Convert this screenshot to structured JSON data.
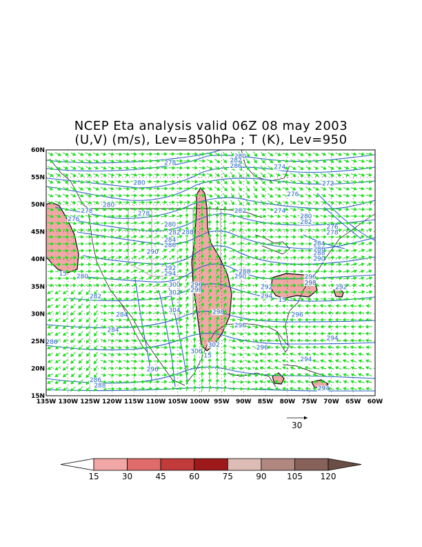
{
  "title": {
    "line1": "NCEP Eta analysis valid 06Z 08 may 2003",
    "line2": "(U,V) (m/s), Lev=850hPa ; T (K), Lev=950"
  },
  "chart_data": {
    "type": "map",
    "lat_range": [
      15,
      60
    ],
    "lon_range": [
      -135,
      -60
    ],
    "lat_ticks": [
      "15N",
      "20N",
      "25N",
      "30N",
      "35N",
      "40N",
      "45N",
      "50N",
      "55N",
      "60N"
    ],
    "lon_ticks": [
      "135W",
      "130W",
      "125W",
      "120W",
      "115W",
      "110W",
      "105W",
      "100W",
      "95W",
      "90W",
      "85W",
      "80W",
      "75W",
      "70W",
      "65W",
      "60W"
    ],
    "grid": true,
    "colors": {
      "contour": "#2a62c8",
      "vector": "#22dd22",
      "coast": "#000000",
      "shade_15_30": "#f2a7a7"
    },
    "vector_reference": {
      "label": "30",
      "units": "m/s"
    },
    "temperature_contour_labels": [
      {
        "text": "278",
        "lon": -107,
        "lat": 57.3
      },
      {
        "text": "280",
        "lon": -91,
        "lat": 58.5
      },
      {
        "text": "282",
        "lon": -92,
        "lat": 57.7
      },
      {
        "text": "286",
        "lon": -92,
        "lat": 56.7
      },
      {
        "text": "274",
        "lon": -82,
        "lat": 56.5
      },
      {
        "text": "272",
        "lon": -71,
        "lat": 53.5
      },
      {
        "text": "276",
        "lon": -79,
        "lat": 51.5
      },
      {
        "text": "280",
        "lon": -114,
        "lat": 53.6
      },
      {
        "text": "280",
        "lon": -121,
        "lat": 49.6
      },
      {
        "text": "278",
        "lon": -126,
        "lat": 48.5
      },
      {
        "text": "276",
        "lon": -129,
        "lat": 47.0
      },
      {
        "text": "278",
        "lon": -113,
        "lat": 48.0
      },
      {
        "text": "280",
        "lon": -107,
        "lat": 46.0
      },
      {
        "text": "282",
        "lon": -106,
        "lat": 44.5
      },
      {
        "text": "288",
        "lon": -103,
        "lat": 44.6
      },
      {
        "text": "284",
        "lon": -107,
        "lat": 43.2
      },
      {
        "text": "286",
        "lon": -107,
        "lat": 42.2
      },
      {
        "text": "290",
        "lon": -111,
        "lat": 41.0
      },
      {
        "text": "282",
        "lon": -91,
        "lat": 48.5
      },
      {
        "text": "274",
        "lon": -82,
        "lat": 48.5
      },
      {
        "text": "280",
        "lon": -76,
        "lat": 47.5
      },
      {
        "text": "282",
        "lon": -76,
        "lat": 46.5
      },
      {
        "text": "276",
        "lon": -70,
        "lat": 45.5
      },
      {
        "text": "278",
        "lon": -70,
        "lat": 44.5
      },
      {
        "text": "284",
        "lon": -73,
        "lat": 42.5
      },
      {
        "text": "286",
        "lon": -73,
        "lat": 41.5
      },
      {
        "text": "288",
        "lon": -73,
        "lat": 40.7
      },
      {
        "text": "290",
        "lon": -73,
        "lat": 39.7
      },
      {
        "text": "292",
        "lon": -107,
        "lat": 38.0
      },
      {
        "text": "294",
        "lon": -107,
        "lat": 37.0
      },
      {
        "text": "288",
        "lon": -90,
        "lat": 37.4
      },
      {
        "text": "290",
        "lon": -91,
        "lat": 36.5
      },
      {
        "text": "296",
        "lon": -75,
        "lat": 36.4
      },
      {
        "text": "298",
        "lon": -75,
        "lat": 35.3
      },
      {
        "text": "292",
        "lon": -85,
        "lat": 34.5
      },
      {
        "text": "294",
        "lon": -85,
        "lat": 32.9
      },
      {
        "text": "292",
        "lon": -68,
        "lat": 34.5
      },
      {
        "text": "280",
        "lon": -127,
        "lat": 36.5
      },
      {
        "text": "282",
        "lon": -124,
        "lat": 32.8
      },
      {
        "text": "300",
        "lon": -106,
        "lat": 35.0
      },
      {
        "text": "296",
        "lon": -101,
        "lat": 35.0
      },
      {
        "text": "302",
        "lon": -106,
        "lat": 33.5
      },
      {
        "text": "298",
        "lon": -101,
        "lat": 34.0
      },
      {
        "text": "304",
        "lon": -106,
        "lat": 30.3
      },
      {
        "text": "298",
        "lon": -96,
        "lat": 30.0
      },
      {
        "text": "284",
        "lon": -118,
        "lat": 29.5
      },
      {
        "text": "284",
        "lon": -120,
        "lat": 26.7
      },
      {
        "text": "296",
        "lon": -91,
        "lat": 27.5
      },
      {
        "text": "296",
        "lon": -78,
        "lat": 29.5
      },
      {
        "text": "294",
        "lon": -70,
        "lat": 25.2
      },
      {
        "text": "286",
        "lon": -134,
        "lat": 24.5
      },
      {
        "text": "302",
        "lon": -97,
        "lat": 24.0
      },
      {
        "text": "306",
        "lon": -101,
        "lat": 22.8
      },
      {
        "text": "296",
        "lon": -86,
        "lat": 23.5
      },
      {
        "text": "294",
        "lon": -76,
        "lat": 21.3
      },
      {
        "text": "296",
        "lon": -111,
        "lat": 19.5
      },
      {
        "text": "286",
        "lon": -124,
        "lat": 17.5
      },
      {
        "text": "288",
        "lon": -123,
        "lat": 16.5
      },
      {
        "text": "294",
        "lon": -72,
        "lat": 16.0
      }
    ],
    "isotach_labels": [
      {
        "text": "15",
        "lon": -131,
        "lat": 37.0
      },
      {
        "text": "15",
        "lon": -98,
        "lat": 22.0
      },
      {
        "text": "15",
        "lon": -81,
        "lat": 32.2
      }
    ]
  },
  "colorbar": {
    "labels": [
      "15",
      "30",
      "45",
      "60",
      "75",
      "90",
      "105",
      "120"
    ],
    "colors": [
      "#ffffff",
      "#f2a7a7",
      "#e06b6b",
      "#c13b3b",
      "#9e1a1a",
      "#dcbcb4",
      "#b08880",
      "#86625b",
      "#6a4d45"
    ]
  }
}
